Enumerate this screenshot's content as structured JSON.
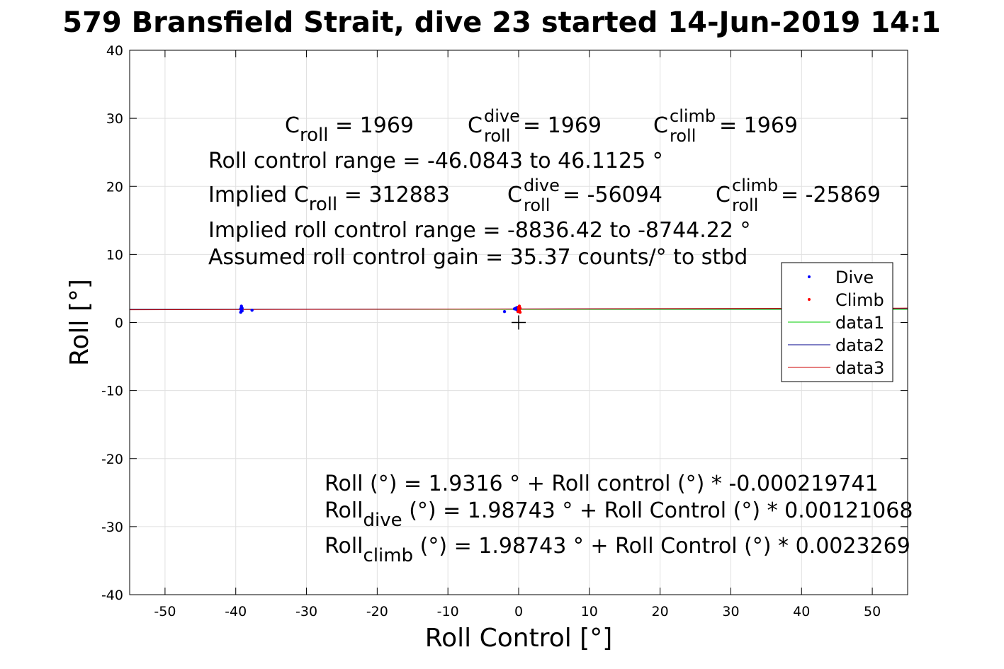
{
  "chart_data": {
    "type": "scatter",
    "title": "579 Bransfield Strait, dive 23 started 14-Jun-2019 14:1",
    "xlabel": "Roll Control [°]",
    "ylabel": "Roll [°]",
    "xlim": [
      -55,
      55
    ],
    "ylim": [
      -40,
      40
    ],
    "xticks": [
      -50,
      -40,
      -30,
      -20,
      -10,
      0,
      10,
      20,
      30,
      40,
      50
    ],
    "yticks": [
      -40,
      -30,
      -20,
      -10,
      0,
      10,
      20,
      30,
      40
    ],
    "grid": true,
    "legend": {
      "position": "right",
      "entries": [
        {
          "label": "Dive",
          "color": "#0000ff",
          "style": "dot"
        },
        {
          "label": "Climb",
          "color": "#ff0000",
          "style": "dot"
        },
        {
          "label": "data1",
          "color": "#00cc00",
          "style": "line"
        },
        {
          "label": "data2",
          "color": "#00008b",
          "style": "line"
        },
        {
          "label": "data3",
          "color": "#cc0000",
          "style": "line"
        }
      ]
    },
    "series": [
      {
        "name": "Dive",
        "color": "#0000ff",
        "x": [
          -39.3,
          -39.2,
          -39.1,
          -39.2,
          -39.3,
          -39.1,
          -39.2,
          -39.2,
          -37.7,
          -2.0,
          -0.6,
          -0.4,
          -0.3,
          -0.2,
          -0.1,
          0.0,
          0.1
        ],
        "y": [
          1.5,
          1.8,
          2.1,
          2.4,
          2.0,
          1.7,
          2.2,
          1.9,
          1.8,
          1.6,
          2.0,
          2.1,
          1.9,
          2.2,
          2.0,
          2.1,
          1.9
        ]
      },
      {
        "name": "Climb",
        "color": "#ff0000",
        "x": [
          -0.1,
          0.0,
          0.1,
          0.2,
          0.1,
          0.0,
          0.2,
          0.1
        ],
        "y": [
          1.6,
          2.2,
          2.4,
          1.5,
          1.9,
          2.0,
          2.1,
          1.7
        ]
      },
      {
        "name": "data1",
        "color": "#00cc00",
        "x": [
          -55,
          55
        ],
        "y": [
          1.9437,
          1.9195
        ]
      },
      {
        "name": "data2",
        "color": "#00008b",
        "x": [
          -55,
          55
        ],
        "y": [
          1.9208,
          2.054
        ]
      },
      {
        "name": "data3",
        "color": "#cc0000",
        "x": [
          -55,
          55
        ],
        "y": [
          1.8595,
          2.1154
        ]
      }
    ],
    "marker": {
      "x": 0,
      "y": 0,
      "symbol": "+"
    },
    "annotations": {
      "line1": [
        {
          "base": "C",
          "sub": "roll",
          "sup": "",
          "rest": " = 1969"
        },
        {
          "base": "C",
          "sub": "roll",
          "sup": "dive",
          "rest": " = 1969"
        },
        {
          "base": "C",
          "sub": "roll",
          "sup": "climb",
          "rest": " = 1969"
        }
      ],
      "line2": "Roll control range = -46.0843 to 46.1125 °",
      "line3": [
        {
          "base": "Implied C",
          "sub": "roll",
          "sup": "",
          "rest": " = 312883"
        },
        {
          "base": "C",
          "sub": "roll",
          "sup": "dive",
          "rest": " = -56094"
        },
        {
          "base": "C",
          "sub": "roll",
          "sup": "climb",
          "rest": " = -25869"
        }
      ],
      "line4": "Implied roll control range = -8836.42 to -8744.22 °",
      "line5": "Assumed roll control gain = 35.37 counts/° to stbd",
      "fit1": "Roll (°) = 1.9316 ° + Roll control (°) * -0.000219741",
      "fit2": {
        "base": "Roll",
        "sub": "dive",
        "rest": " (°) = 1.98743 ° + Roll Control (°) * 0.00121068"
      },
      "fit3": {
        "base": "Roll",
        "sub": "climb",
        "rest": " (°) = 1.98743 ° + Roll Control (°) * 0.0023269"
      }
    }
  }
}
